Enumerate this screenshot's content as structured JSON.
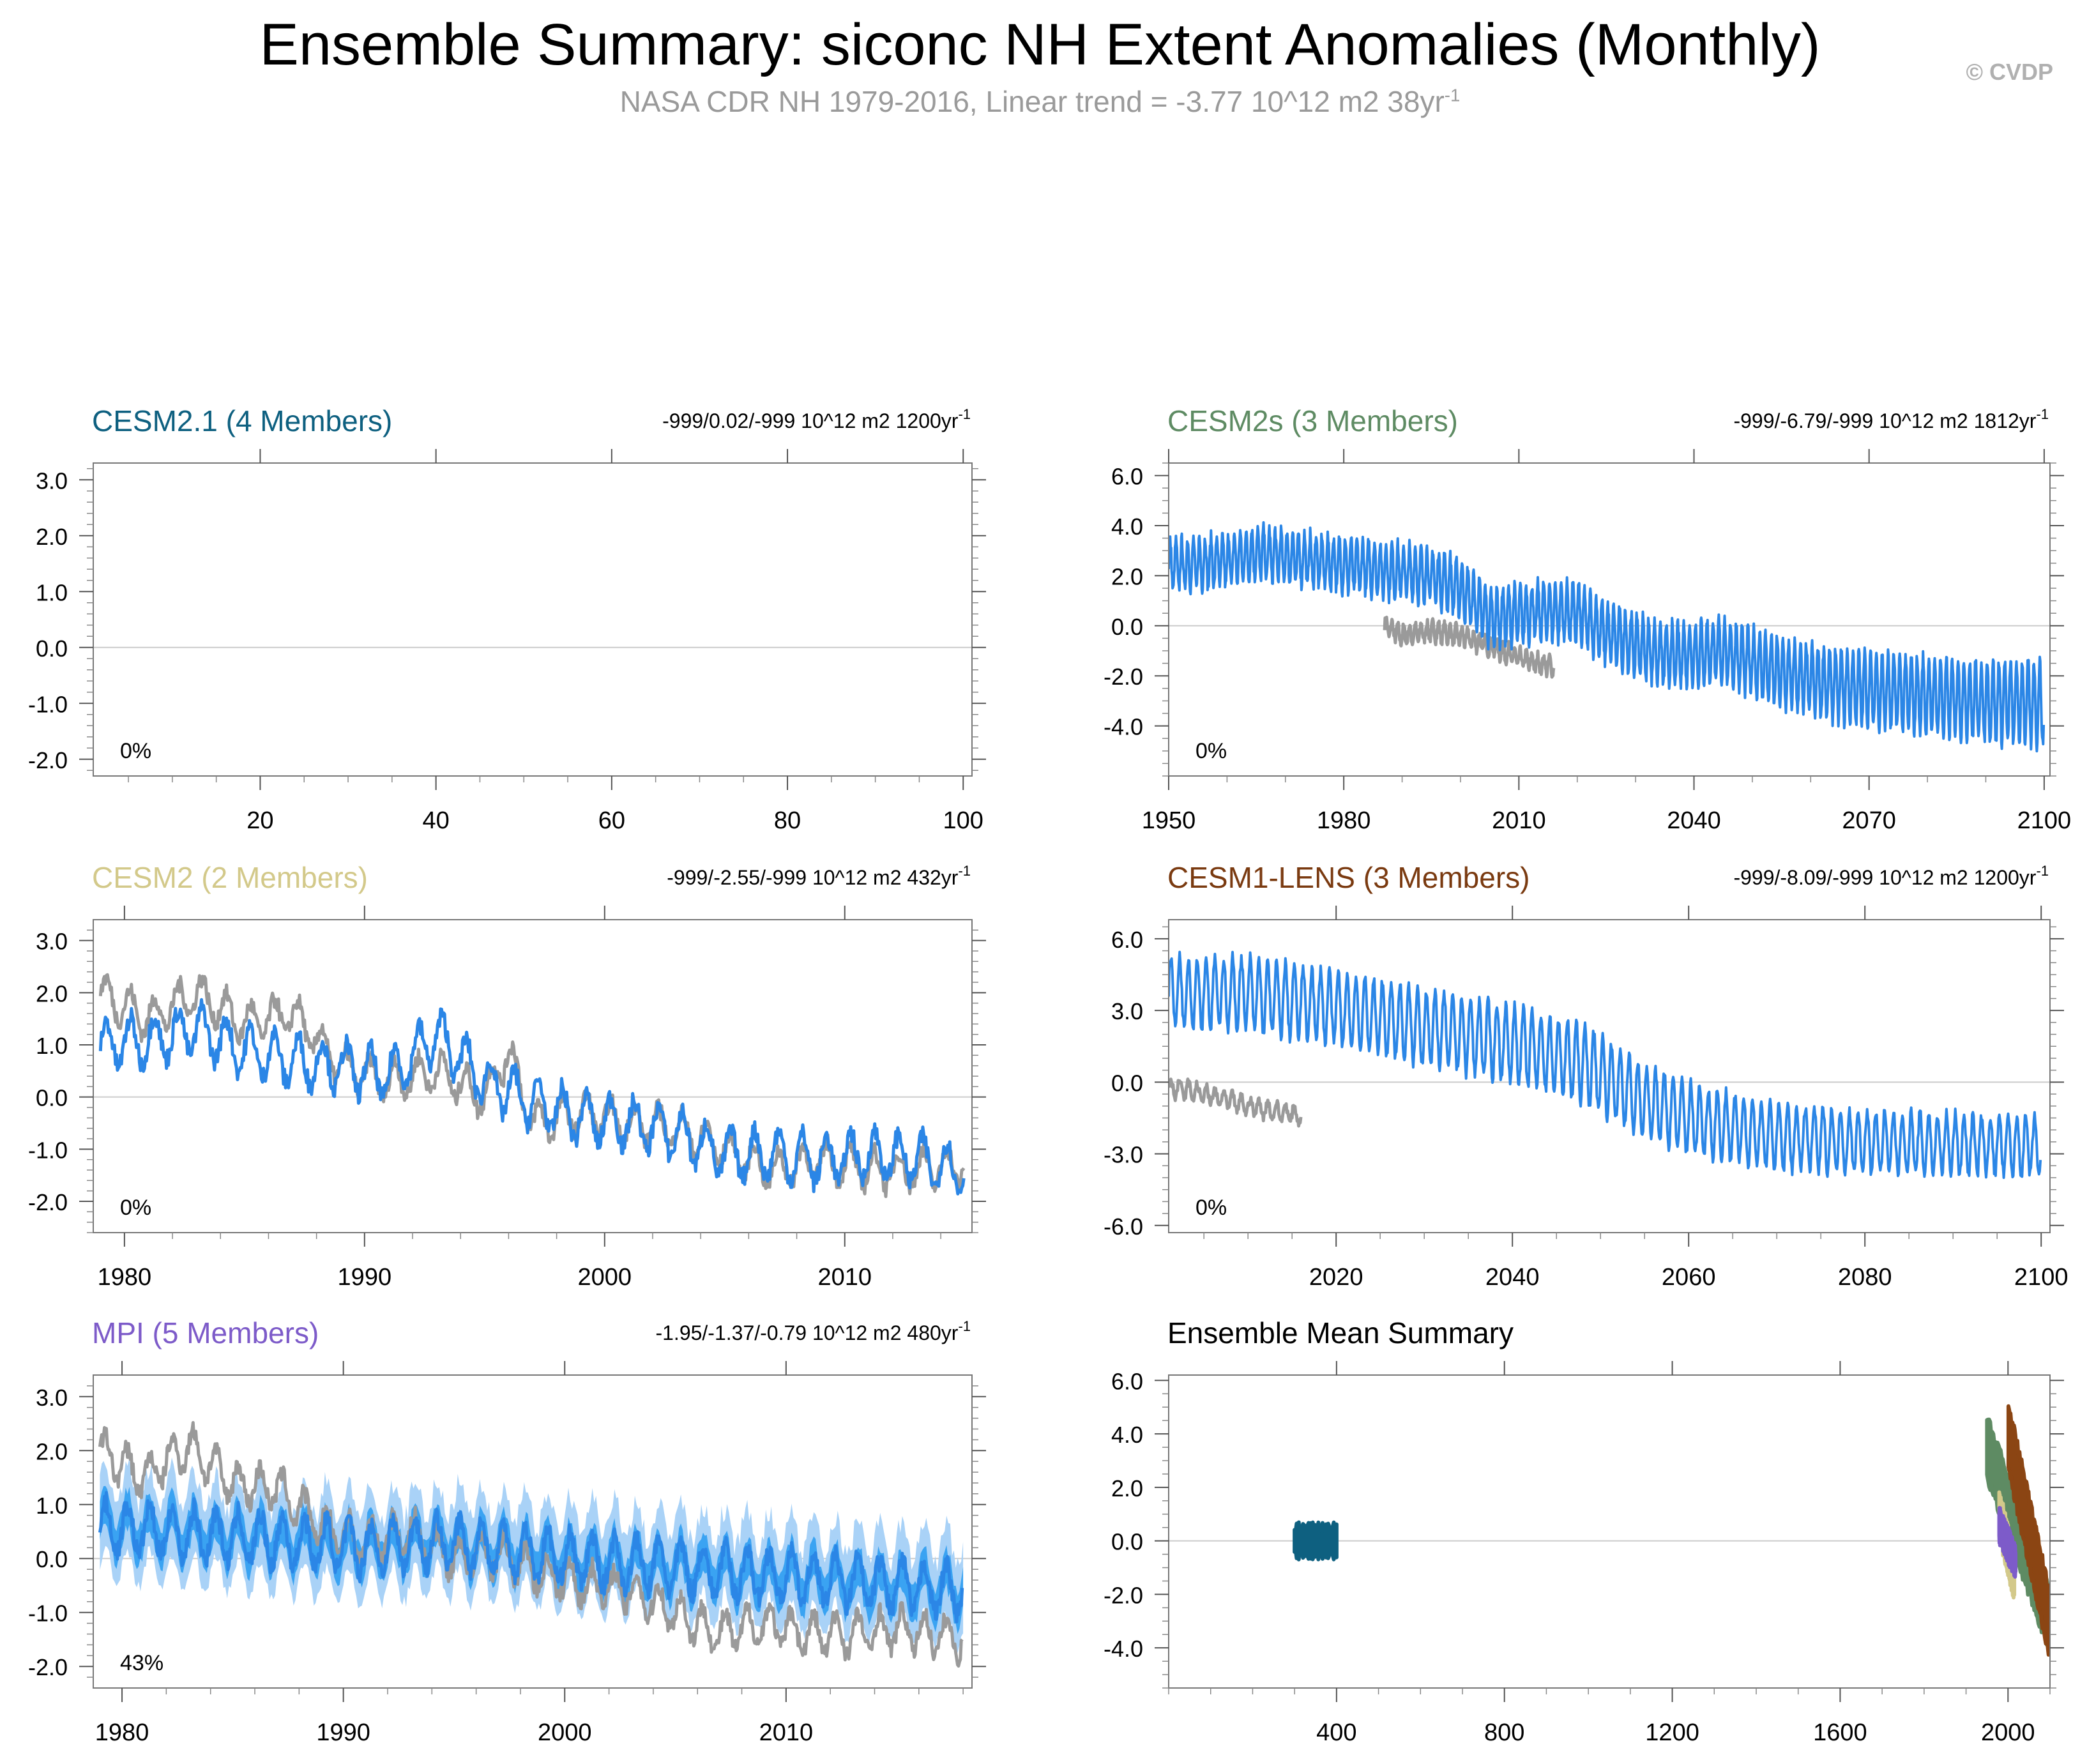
{
  "title": "Ensemble Summary: siconc NH Extent Anomalies (Monthly)",
  "subtitle": "NASA CDR NH 1979-2016, Linear trend = -3.77 10^12 m2 38yr",
  "subtitle_sup": "-1",
  "copyright": "© CVDP",
  "colors": {
    "observations": "#9a9a9a",
    "ensemble_line": "#2b86e6",
    "ensemble_spread_light": "#a9d2f7",
    "ensemble_spread_dark": "#3aa3f2",
    "zero_line": "#cccccc"
  },
  "chart_data": [
    {
      "id": "cesm21",
      "type": "line",
      "title": "CESM2.1 (4 Members)",
      "title_color": "#0e6080",
      "stats": "-999/0.02/-999 10^12 m2 1200yr",
      "stats_sup": "-1",
      "percent": "0%",
      "xlim": [
        1,
        101
      ],
      "ylim": [
        -2.3,
        3.3
      ],
      "xticks": [
        20,
        40,
        60,
        80,
        100
      ],
      "xticklabels": [
        "20",
        "40",
        "60",
        "80",
        "100"
      ],
      "yticks": [
        3.0,
        2.0,
        1.0,
        0.0,
        -1.0,
        -2.0
      ],
      "yticklabels": [
        "3.0",
        "2.0",
        "1.0",
        "0.0",
        "-1.0",
        "-2.0"
      ],
      "observations": [],
      "ensemble_mean": [],
      "spread": []
    },
    {
      "id": "cesm2s",
      "type": "line",
      "title": "CESM2s (3 Members)",
      "title_color": "#5e8b63",
      "stats": "-999/-6.79/-999 10^12 m2 1812yr",
      "stats_sup": "-1",
      "percent": "0%",
      "xlim": [
        1950,
        2101
      ],
      "ylim": [
        -6.0,
        6.5
      ],
      "xticks": [
        1950,
        1980,
        2010,
        2040,
        2070,
        2100
      ],
      "xticklabels": [
        "1950",
        "1980",
        "2010",
        "2040",
        "2070",
        "2100"
      ],
      "yticks": [
        6.0,
        4.0,
        2.0,
        0.0,
        -2.0,
        -4.0
      ],
      "yticklabels": [
        "6.0",
        "4.0",
        "2.0",
        "0.0",
        "-2.0",
        "-4.0"
      ],
      "observations": [
        [
          1987,
          0.0
        ],
        [
          1990,
          -0.4
        ],
        [
          1995,
          -0.2
        ],
        [
          2000,
          -0.4
        ],
        [
          2005,
          -0.8
        ],
        [
          2010,
          -1.3
        ],
        [
          2013,
          -1.5
        ],
        [
          2016,
          -1.6
        ]
      ],
      "ensemble_mean": [
        [
          1950,
          2.4
        ],
        [
          1960,
          2.6
        ],
        [
          1965,
          2.9
        ],
        [
          1975,
          2.6
        ],
        [
          1985,
          2.3
        ],
        [
          1995,
          2.0
        ],
        [
          2000,
          1.5
        ],
        [
          2005,
          0.3
        ],
        [
          2015,
          0.6
        ],
        [
          2020,
          0.5
        ],
        [
          2025,
          -0.3
        ],
        [
          2035,
          -1.2
        ],
        [
          2045,
          -1.0
        ],
        [
          2055,
          -1.9
        ],
        [
          2065,
          -2.4
        ],
        [
          2080,
          -2.8
        ],
        [
          2090,
          -3.0
        ],
        [
          2100,
          -3.1
        ]
      ],
      "cycle_amplitude": [
        [
          1950,
          1.0
        ],
        [
          2000,
          1.1
        ],
        [
          2030,
          1.2
        ],
        [
          2060,
          1.4
        ],
        [
          2100,
          1.7
        ]
      ],
      "spread": []
    },
    {
      "id": "cesm2",
      "type": "line",
      "title": "CESM2 (2 Members)",
      "title_color": "#d3c98a",
      "stats": "-999/-2.55/-999 10^12 m2 432yr",
      "stats_sup": "-1",
      "percent": "0%",
      "xlim": [
        1978.7,
        2015.3
      ],
      "ylim": [
        -2.6,
        3.4
      ],
      "xticks": [
        1980,
        1990,
        2000,
        2010
      ],
      "xticklabels": [
        "1980",
        "1990",
        "2000",
        "2010"
      ],
      "yticks": [
        3.0,
        2.0,
        1.0,
        0.0,
        -1.0,
        -2.0
      ],
      "yticklabels": [
        "3.0",
        "2.0",
        "1.0",
        "0.0",
        "-1.0",
        "-2.0"
      ],
      "observations": [
        [
          1979,
          2.0
        ],
        [
          1981,
          1.5
        ],
        [
          1983,
          2.0
        ],
        [
          1985,
          1.4
        ],
        [
          1987,
          1.6
        ],
        [
          1989,
          0.6
        ],
        [
          1991,
          0.3
        ],
        [
          1993,
          0.5
        ],
        [
          1995,
          0.0
        ],
        [
          1996,
          0.9
        ],
        [
          1997,
          -0.5
        ],
        [
          1999,
          -0.3
        ],
        [
          2001,
          -0.5
        ],
        [
          2003,
          -0.6
        ],
        [
          2005,
          -1.0
        ],
        [
          2007,
          -1.4
        ],
        [
          2009,
          -1.2
        ],
        [
          2011,
          -1.4
        ],
        [
          2013,
          -1.4
        ],
        [
          2015,
          -1.3
        ]
      ],
      "ensemble_mean": [
        [
          1979,
          1.0
        ],
        [
          1981,
          1.1
        ],
        [
          1983,
          1.3
        ],
        [
          1985,
          0.9
        ],
        [
          1987,
          0.7
        ],
        [
          1989,
          0.6
        ],
        [
          1991,
          0.4
        ],
        [
          1993,
          1.2
        ],
        [
          1995,
          0.3
        ],
        [
          1997,
          -0.1
        ],
        [
          1999,
          -0.4
        ],
        [
          2001,
          -0.5
        ],
        [
          2003,
          -0.7
        ],
        [
          2005,
          -1.1
        ],
        [
          2007,
          -1.1
        ],
        [
          2009,
          -1.2
        ],
        [
          2011,
          -1.1
        ],
        [
          2013,
          -1.2
        ],
        [
          2015,
          -1.4
        ]
      ],
      "spread": []
    },
    {
      "id": "cesm1lens",
      "type": "line",
      "title": "CESM1-LENS (3 Members)",
      "title_color": "#7a3a10",
      "stats": "-999/-8.09/-999 10^12 m2 1200yr",
      "stats_sup": "-1",
      "percent": "0%",
      "xlim": [
        2001,
        2101
      ],
      "ylim": [
        -6.3,
        6.8
      ],
      "xticks": [
        2020,
        2040,
        2060,
        2080,
        2100
      ],
      "xticklabels": [
        "2020",
        "2040",
        "2060",
        "2080",
        "2100"
      ],
      "yticks": [
        6.0,
        3.0,
        0.0,
        -3.0,
        -6.0
      ],
      "yticklabels": [
        "6.0",
        "3.0",
        "0.0",
        "-3.0",
        "-6.0"
      ],
      "observations": [
        [
          2001,
          -0.2
        ],
        [
          2004,
          -0.4
        ],
        [
          2007,
          -0.7
        ],
        [
          2010,
          -1.0
        ],
        [
          2013,
          -1.2
        ],
        [
          2016,
          -1.4
        ]
      ],
      "ensemble_mean": [
        [
          2001,
          3.8
        ],
        [
          2010,
          3.7
        ],
        [
          2020,
          3.1
        ],
        [
          2030,
          2.3
        ],
        [
          2040,
          1.6
        ],
        [
          2048,
          0.8
        ],
        [
          2055,
          -0.8
        ],
        [
          2060,
          -1.5
        ],
        [
          2070,
          -2.3
        ],
        [
          2080,
          -2.5
        ],
        [
          2090,
          -2.6
        ],
        [
          2100,
          -2.7
        ]
      ],
      "cycle_amplitude": [
        [
          2001,
          1.5
        ],
        [
          2050,
          1.6
        ],
        [
          2065,
          1.4
        ],
        [
          2100,
          1.2
        ]
      ],
      "spread": []
    },
    {
      "id": "mpi",
      "type": "line",
      "title": "MPI (5 Members)",
      "title_color": "#7d5bc9",
      "stats": "-1.95/-1.37/-0.79 10^12 m2 480yr",
      "stats_sup": "-1",
      "percent": "43%",
      "xlim": [
        1978.7,
        2018.4
      ],
      "ylim": [
        -2.4,
        3.4
      ],
      "xticks": [
        1980,
        1990,
        2000,
        2010
      ],
      "xticklabels": [
        "1980",
        "1990",
        "2000",
        "2010"
      ],
      "yticks": [
        3.0,
        2.0,
        1.0,
        0.0,
        -1.0,
        -2.0
      ],
      "yticklabels": [
        "3.0",
        "2.0",
        "1.0",
        "0.0",
        "-1.0",
        "-2.0"
      ],
      "observations": [
        [
          1979,
          2.0
        ],
        [
          1981,
          1.5
        ],
        [
          1983,
          2.1
        ],
        [
          1985,
          1.4
        ],
        [
          1987,
          1.3
        ],
        [
          1989,
          0.6
        ],
        [
          1991,
          0.3
        ],
        [
          1993,
          0.5
        ],
        [
          1995,
          0.0
        ],
        [
          1997,
          0.1
        ],
        [
          1999,
          -0.3
        ],
        [
          2001,
          -0.5
        ],
        [
          2003,
          -0.6
        ],
        [
          2005,
          -1.0
        ],
        [
          2007,
          -1.4
        ],
        [
          2009,
          -1.2
        ],
        [
          2011,
          -1.4
        ],
        [
          2013,
          -1.4
        ],
        [
          2015,
          -1.3
        ],
        [
          2018,
          -1.5
        ]
      ],
      "ensemble_mean": [
        [
          1979,
          0.6
        ],
        [
          1982,
          0.5
        ],
        [
          1985,
          0.4
        ],
        [
          1988,
          0.3
        ],
        [
          1991,
          0.2
        ],
        [
          1994,
          0.3
        ],
        [
          1997,
          0.2
        ],
        [
          2000,
          0.0
        ],
        [
          2003,
          -0.1
        ],
        [
          2006,
          -0.2
        ],
        [
          2009,
          -0.3
        ],
        [
          2012,
          -0.4
        ],
        [
          2015,
          -0.5
        ],
        [
          2018,
          -0.6
        ]
      ],
      "spread_half_width": 0.6,
      "spread_inner_half_width": 0.35,
      "spread": []
    },
    {
      "id": "ensmean",
      "type": "line",
      "title": "Ensemble Mean Summary",
      "title_color": "#000000",
      "stats": "",
      "stats_sup": "",
      "percent": "",
      "xlim": [
        0,
        2100
      ],
      "ylim": [
        -5.5,
        6.2
      ],
      "xticks": [
        400,
        800,
        1200,
        1600,
        2000
      ],
      "xticklabels": [
        "400",
        "800",
        "1200",
        "1600",
        "2000"
      ],
      "yticks": [
        6.0,
        4.0,
        2.0,
        0.0,
        -2.0,
        -4.0
      ],
      "yticklabels": [
        "6.0",
        "4.0",
        "2.0",
        "0.0",
        "-2.0",
        "-4.0"
      ],
      "members": [
        {
          "name": "CESM2.1",
          "color": "#0e6080",
          "x": [
            300,
            400
          ],
          "center": [
            0.0,
            0.0
          ],
          "half_width": 0.6
        },
        {
          "name": "CESM2s",
          "color": "#5e8b63",
          "x": [
            1950,
            2100
          ],
          "center": [
            3.5,
            -3.0
          ],
          "half_width": 1.8
        },
        {
          "name": "CESM2",
          "color": "#d3c98a",
          "x": [
            1979,
            2015
          ],
          "center": [
            1.0,
            -1.3
          ],
          "half_width": 1.2
        },
        {
          "name": "CESM1-LENS",
          "color": "#8b4513",
          "x": [
            2001,
            2100
          ],
          "center": [
            3.9,
            -3.2
          ],
          "half_width": 2.0
        },
        {
          "name": "MPI",
          "color": "#7d5bc9",
          "x": [
            1979,
            2018
          ],
          "center": [
            0.6,
            -0.8
          ],
          "half_width": 0.6
        }
      ]
    }
  ]
}
